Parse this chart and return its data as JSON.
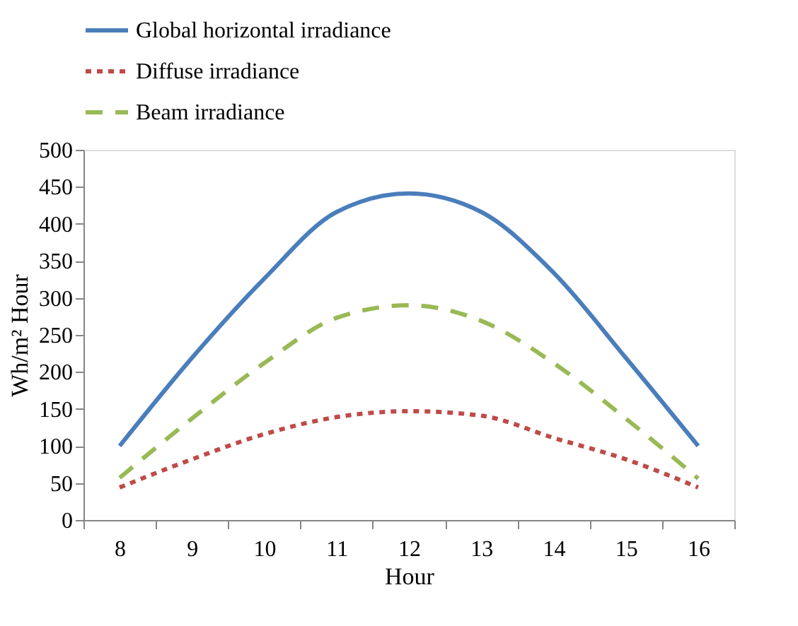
{
  "chart_data": {
    "type": "line",
    "xlabel": "Hour",
    "ylabel": "Wh/m² Hour",
    "categories": [
      "8",
      "9",
      "10",
      "11",
      "12",
      "13",
      "14",
      "15",
      "16"
    ],
    "ylim": [
      0,
      500
    ],
    "yticks": [
      0,
      50,
      100,
      150,
      200,
      250,
      300,
      350,
      400,
      450,
      500
    ],
    "grid": false,
    "legend": "top",
    "marker": "none",
    "series": [
      {
        "name": "Global horizontal irradiance",
        "color": "#4a7ebb",
        "line_style": "solid",
        "values": [
          100,
          219,
          326,
          416,
          441,
          416,
          334,
          219,
          100
        ]
      },
      {
        "name": "Diffuse irradiance",
        "color": "#be4b48",
        "line_style": "dotted",
        "values": [
          44,
          82,
          116,
          139,
          147,
          141,
          111,
          82,
          44
        ]
      },
      {
        "name": "Beam irradiance",
        "color": "#98b954",
        "line_style": "dashed",
        "values": [
          57,
          137,
          212,
          273,
          290,
          269,
          212,
          137,
          56
        ]
      }
    ]
  }
}
